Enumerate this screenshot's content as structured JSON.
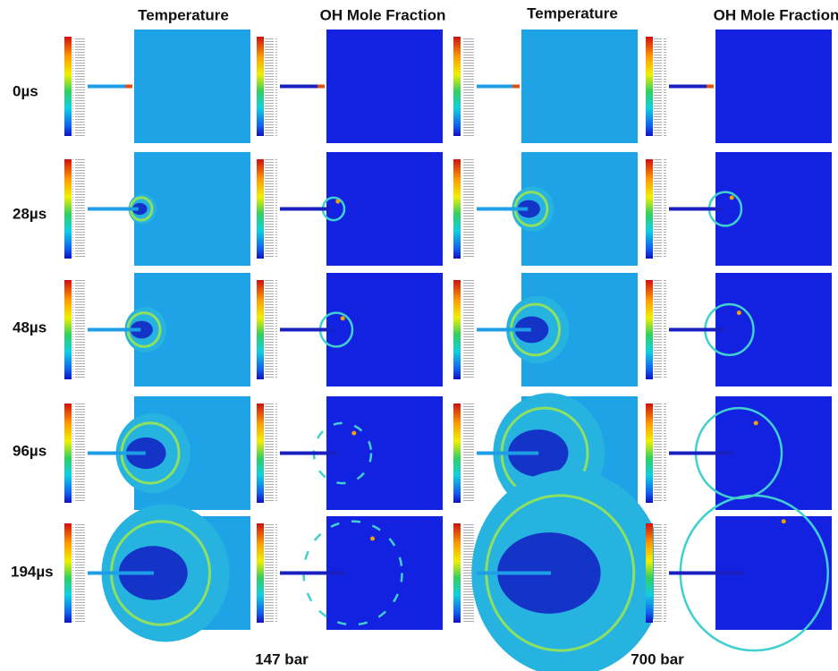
{
  "columns": [
    "Temperature",
    "OH Mole Fraction",
    "Temperature",
    "OH Mole Fraction"
  ],
  "rows": [
    "0µs",
    "28µs",
    "48µs",
    "96µs",
    "194µs"
  ],
  "conditions": [
    "147 bar",
    "700 bar"
  ]
}
